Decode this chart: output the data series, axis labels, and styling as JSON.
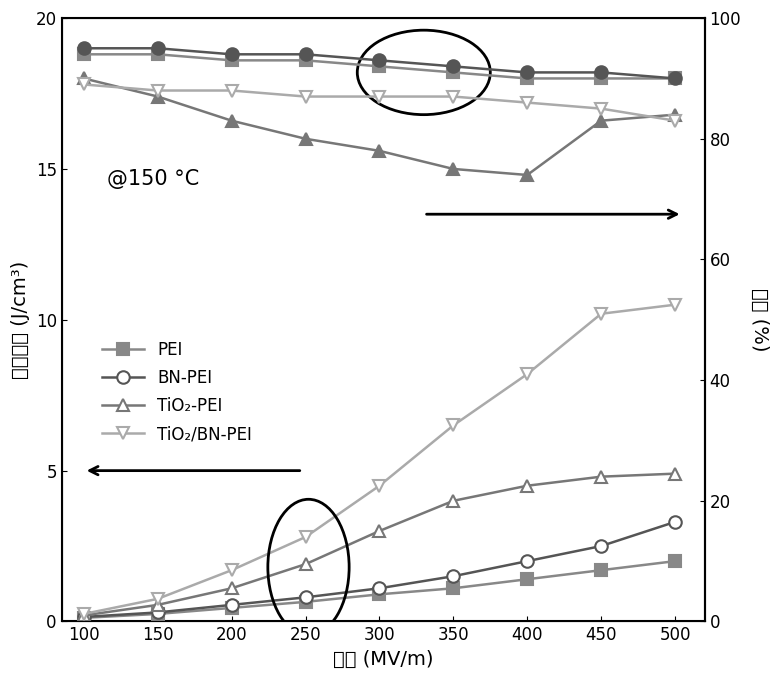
{
  "x": [
    100,
    150,
    200,
    250,
    300,
    350,
    400,
    450,
    500
  ],
  "energy_PEI": [
    0.12,
    0.25,
    0.45,
    0.65,
    0.9,
    1.1,
    1.4,
    1.7,
    2.0
  ],
  "energy_BNPEI": [
    0.15,
    0.3,
    0.55,
    0.8,
    1.1,
    1.5,
    2.0,
    2.5,
    3.3
  ],
  "energy_TiO2PEI": [
    0.2,
    0.55,
    1.1,
    1.9,
    3.0,
    4.0,
    4.5,
    4.8,
    4.9
  ],
  "energy_TiO2BNPEI": [
    0.25,
    0.75,
    1.7,
    2.8,
    4.5,
    6.5,
    8.2,
    10.2,
    10.5
  ],
  "eff_PEI": [
    94,
    94,
    93,
    93,
    92,
    91,
    90,
    90,
    90
  ],
  "eff_BNPEI": [
    95,
    95,
    94,
    94,
    93,
    92,
    91,
    91,
    90
  ],
  "eff_TiO2PEI": [
    90,
    87,
    83,
    80,
    78,
    75,
    74,
    83,
    84
  ],
  "eff_TiO2BNPEI": [
    89,
    88,
    88,
    87,
    87,
    87,
    86,
    85,
    83
  ],
  "color_PEI": "#888888",
  "color_BNPEI": "#555555",
  "color_TiO2PEI": "#777777",
  "color_TiO2BNPEI": "#aaaaaa",
  "xlabel": "电场 (MV/m)",
  "ylabel_left": "储能密度 (J/cm³)",
  "ylabel_right": "效率 (%)",
  "annotation": "@150 °C",
  "xlim": [
    85,
    520
  ],
  "ylim_left": [
    0,
    20
  ],
  "ylim_right": [
    0,
    100
  ],
  "xticks": [
    100,
    150,
    200,
    250,
    300,
    350,
    400,
    450,
    500
  ],
  "yticks_left": [
    0,
    5,
    10,
    15,
    20
  ],
  "yticks_right": [
    0,
    20,
    40,
    60,
    80,
    100
  ],
  "legend_labels": [
    "PEI",
    "BN-PEI",
    "TiO₂-PEI",
    "TiO₂/BN-PEI"
  ]
}
